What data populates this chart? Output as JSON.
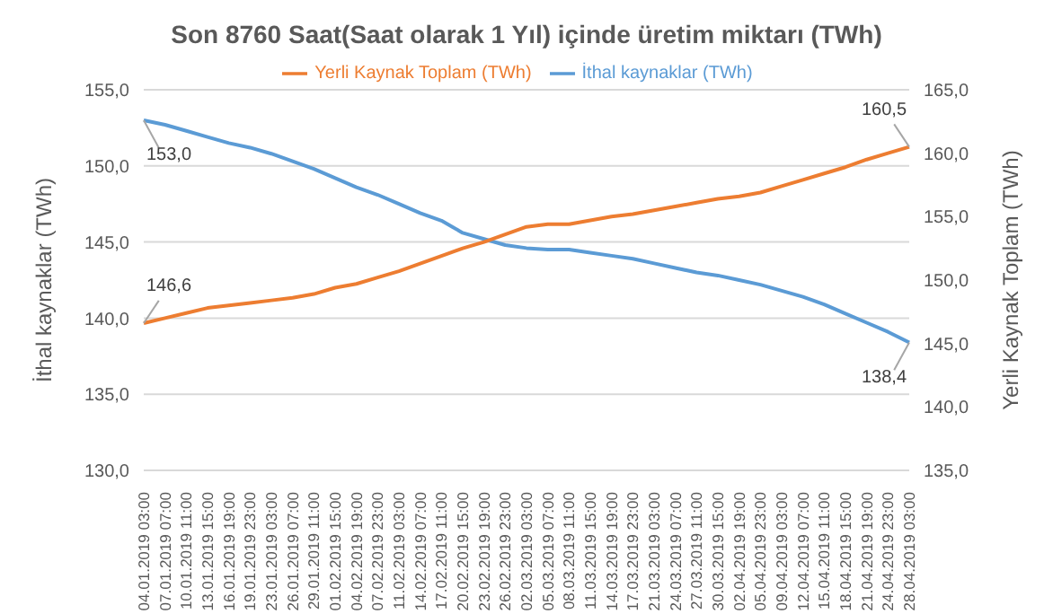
{
  "chart_data": {
    "type": "line",
    "title": "Son 8760 Saat(Saat olarak 1 Yıl) içinde üretim miktarı (TWh)",
    "ylabel": "İthal kaynaklar (TWh)",
    "y2label": "Yerli Kaynak Toplam (TWh)",
    "categories": [
      "04.01.2019 03:00",
      "07.01.2019 07:00",
      "10.01.2019 11:00",
      "13.01.2019 15:00",
      "16.01.2019 19:00",
      "19.01.2019 23:00",
      "23.01.2019 03:00",
      "26.01.2019 07:00",
      "29.01.2019 11:00",
      "01.02.2019 15:00",
      "04.02.2019 19:00",
      "07.02.2019 23:00",
      "11.02.2019 03:00",
      "14.02.2019 07:00",
      "17.02.2019 11:00",
      "20.02.2019 15:00",
      "23.02.2019 19:00",
      "26.02.2019 23:00",
      "02.03.2019 03:00",
      "05.03.2019 07:00",
      "08.03.2019 11:00",
      "11.03.2019 15:00",
      "14.03.2019 19:00",
      "17.03.2019 23:00",
      "21.03.2019 03:00",
      "24.03.2019 07:00",
      "27.03.2019 11:00",
      "30.03.2019 15:00",
      "02.04.2019 19:00",
      "05.04.2019 23:00",
      "09.04.2019 03:00",
      "12.04.2019 07:00",
      "15.04.2019 11:00",
      "18.04.2019 15:00",
      "21.04.2019 19:00",
      "24.04.2019 23:00",
      "28.04.2019 03:00"
    ],
    "series": [
      {
        "name": "İthal kaynaklar (TWh)",
        "color": "#5b9bd5",
        "values": [
          153.0,
          152.7,
          152.3,
          151.9,
          151.5,
          151.2,
          150.8,
          150.3,
          149.8,
          149.2,
          148.6,
          148.1,
          147.5,
          146.9,
          146.4,
          145.6,
          145.2,
          144.8,
          144.6,
          144.5,
          144.5,
          144.3,
          144.1,
          143.9,
          143.6,
          143.3,
          143.0,
          142.8,
          142.5,
          142.2,
          141.8,
          141.4,
          140.9,
          140.3,
          139.7,
          139.1,
          138.4
        ],
        "value_labels": [
          "153,0",
          null,
          null,
          null,
          null,
          null,
          null,
          null,
          null,
          null,
          null,
          null,
          null,
          null,
          null,
          null,
          null,
          null,
          null,
          null,
          null,
          null,
          null,
          null,
          null,
          null,
          null,
          null,
          null,
          null,
          null,
          null,
          null,
          null,
          null,
          null,
          "138,4"
        ]
      },
      {
        "name": "Yerli Kaynak Toplam (TWh)",
        "color": "#ed7d31",
        "axis": "y2",
        "values": [
          146.6,
          147.0,
          147.4,
          147.8,
          148.0,
          148.2,
          148.4,
          148.6,
          148.9,
          149.4,
          149.7,
          150.2,
          150.7,
          151.3,
          151.9,
          152.5,
          153.0,
          153.6,
          154.2,
          154.4,
          154.4,
          154.7,
          155.0,
          155.2,
          155.5,
          155.8,
          156.1,
          156.4,
          156.6,
          156.9,
          157.4,
          157.9,
          158.4,
          158.9,
          159.5,
          160.0,
          160.5
        ],
        "value_labels": [
          "146,6",
          null,
          null,
          null,
          null,
          null,
          null,
          null,
          null,
          null,
          null,
          null,
          null,
          null,
          null,
          null,
          null,
          null,
          null,
          null,
          null,
          null,
          null,
          null,
          null,
          null,
          null,
          null,
          null,
          null,
          null,
          null,
          null,
          null,
          null,
          null,
          "160,5"
        ]
      }
    ],
    "ylim": [
      130,
      155
    ],
    "yticks": [
      {
        "value": 130,
        "label": "130,0"
      },
      {
        "value": 135,
        "label": "135,0"
      },
      {
        "value": 140,
        "label": "140,0"
      },
      {
        "value": 145,
        "label": "145,0"
      },
      {
        "value": 150,
        "label": "150,0"
      },
      {
        "value": 155,
        "label": "155,0"
      }
    ],
    "y2lim": [
      135,
      165
    ],
    "y2ticks": [
      {
        "value": 135,
        "label": "135,0"
      },
      {
        "value": 140,
        "label": "140,0"
      },
      {
        "value": 145,
        "label": "145,0"
      },
      {
        "value": 150,
        "label": "150,0"
      },
      {
        "value": 155,
        "label": "155,0"
      },
      {
        "value": 160,
        "label": "160,0"
      },
      {
        "value": 165,
        "label": "165,0"
      }
    ],
    "grid": "y",
    "legend": "top",
    "marker": "none",
    "line_style": "solid"
  }
}
